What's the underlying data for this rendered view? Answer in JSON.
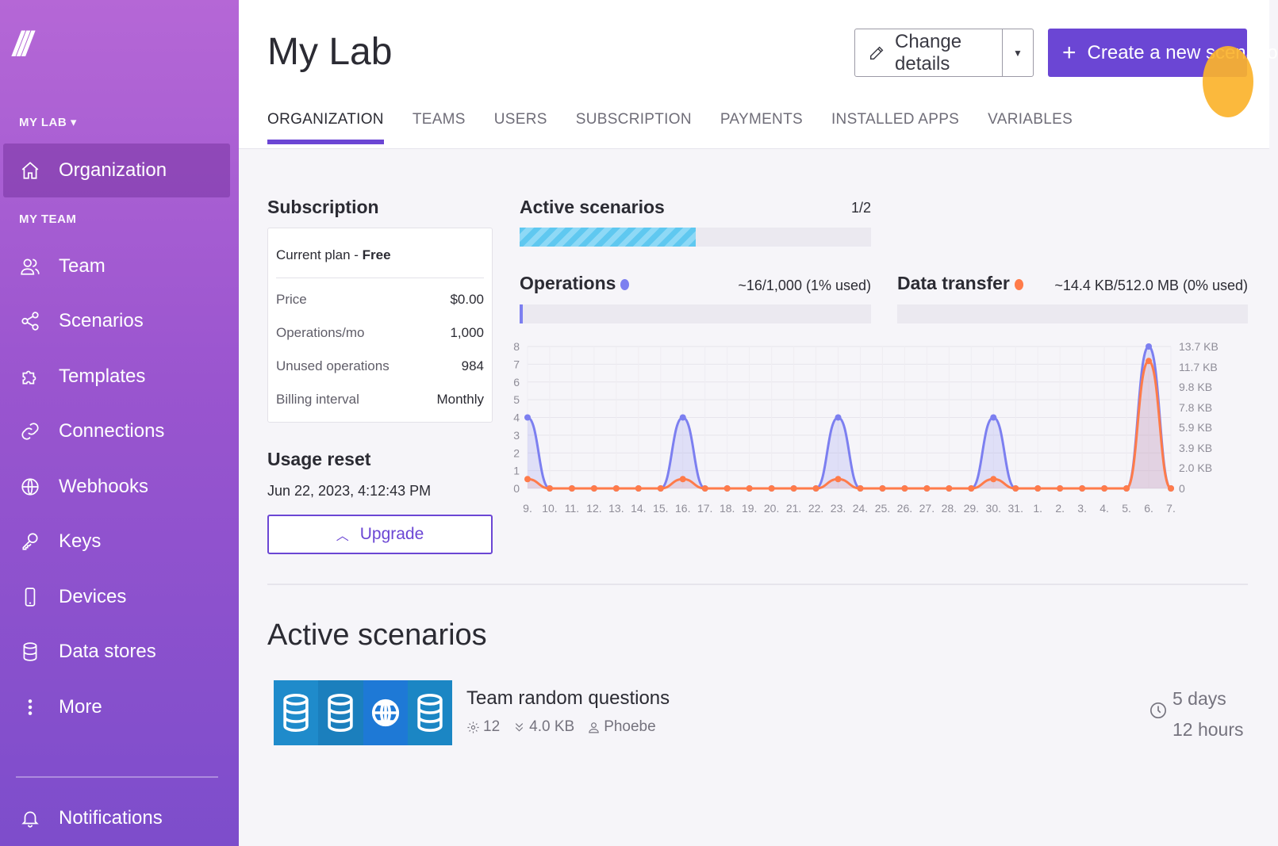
{
  "sidebar": {
    "logo": "///",
    "section_lab": "MY LAB ▾",
    "section_team": "MY TEAM",
    "organization": "Organization",
    "items": [
      {
        "label": "Team",
        "icon": "team-icon"
      },
      {
        "label": "Scenarios",
        "icon": "share-icon"
      },
      {
        "label": "Templates",
        "icon": "puzzle-icon"
      },
      {
        "label": "Connections",
        "icon": "link-icon"
      },
      {
        "label": "Webhooks",
        "icon": "globe-icon"
      },
      {
        "label": "Keys",
        "icon": "key-icon"
      },
      {
        "label": "Devices",
        "icon": "phone-icon"
      },
      {
        "label": "Data stores",
        "icon": "database-icon"
      },
      {
        "label": "More",
        "icon": "more-icon"
      }
    ],
    "notifications": "Notifications"
  },
  "header": {
    "title": "My Lab",
    "change_details": "Change details",
    "create_scenario": "Create a new scenario",
    "tabs": [
      "ORGANIZATION",
      "TEAMS",
      "USERS",
      "SUBSCRIPTION",
      "PAYMENTS",
      "INSTALLED APPS",
      "VARIABLES"
    ]
  },
  "subscription": {
    "heading": "Subscription",
    "plan_prefix": "Current plan - ",
    "plan": "Free",
    "rows": [
      {
        "key": "Price",
        "value": "$0.00"
      },
      {
        "key": "Operations/mo",
        "value": "1,000"
      },
      {
        "key": "Unused operations",
        "value": "984"
      },
      {
        "key": "Billing interval",
        "value": "Monthly"
      }
    ]
  },
  "usage_reset": {
    "heading": "Usage reset",
    "date": "Jun 22, 2023, 4:12:43 PM",
    "upgrade": "Upgrade"
  },
  "active_scenarios_meter": {
    "heading": "Active scenarios",
    "count": "1/2",
    "fraction": 0.5
  },
  "operations_meter": {
    "heading": "Operations",
    "usage": "~16/1,000 (1% used)",
    "fraction": 0.01,
    "color": "#7c7ff0"
  },
  "data_transfer_meter": {
    "heading": "Data transfer",
    "usage": "~14.4 KB/512.0 MB (0% used)",
    "fraction": 0.0,
    "color": "#ff7b4a"
  },
  "chart_data": {
    "type": "area",
    "x": [
      "9.",
      "10.",
      "11.",
      "12.",
      "13.",
      "14.",
      "15.",
      "16.",
      "17.",
      "18.",
      "19.",
      "20.",
      "21.",
      "22.",
      "23.",
      "24.",
      "25.",
      "26.",
      "27.",
      "28.",
      "29.",
      "30.",
      "31.",
      "1.",
      "2.",
      "3.",
      "4.",
      "5.",
      "6.",
      "7."
    ],
    "y_left_ticks": [
      "0",
      "1",
      "2",
      "3",
      "4",
      "5",
      "6",
      "7",
      "8"
    ],
    "y_right_ticks": [
      "0",
      "2.0 KB",
      "3.9 KB",
      "5.9 KB",
      "7.8 KB",
      "9.8 KB",
      "11.7 KB",
      "13.7 KB"
    ],
    "ylim": [
      0,
      8
    ],
    "grid": true,
    "series": [
      {
        "name": "Operations",
        "color": "#7c7ff0",
        "axis": "left",
        "values": [
          4,
          0,
          0,
          0,
          0,
          0,
          0,
          4,
          0,
          0,
          0,
          0,
          0,
          0,
          4,
          0,
          0,
          0,
          0,
          0,
          0,
          4,
          0,
          0,
          0,
          0,
          0,
          0,
          8,
          0
        ]
      },
      {
        "name": "Data transfer",
        "color": "#ff7b4a",
        "axis": "right",
        "unit": "KB",
        "values": [
          0.9,
          0,
          0,
          0,
          0,
          0,
          0,
          0.9,
          0,
          0,
          0,
          0,
          0,
          0,
          0.9,
          0,
          0,
          0,
          0,
          0,
          0,
          0.9,
          0,
          0,
          0,
          0,
          0,
          0,
          12.3,
          0
        ]
      }
    ]
  },
  "active_scenarios": {
    "heading": "Active scenarios",
    "items": [
      {
        "name": "Team random questions",
        "operations": "12",
        "transfer": "4.0 KB",
        "owner": "Phoebe",
        "time_line1": "5 days",
        "time_line2": "12 hours",
        "modules": [
          "database-icon",
          "database-icon",
          "globe-icon",
          "database-icon"
        ]
      }
    ]
  }
}
